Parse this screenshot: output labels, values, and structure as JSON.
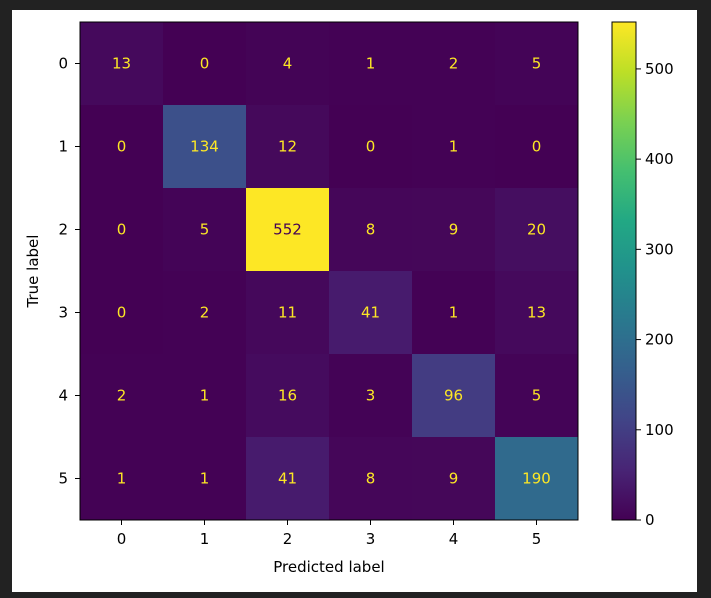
{
  "chart_data": {
    "type": "heatmap",
    "title": "",
    "xlabel": "Predicted label",
    "ylabel": "True label",
    "x_categories": [
      "0",
      "1",
      "2",
      "3",
      "4",
      "5"
    ],
    "y_categories": [
      "0",
      "1",
      "2",
      "3",
      "4",
      "5"
    ],
    "values": [
      [
        13,
        0,
        4,
        1,
        2,
        5
      ],
      [
        0,
        134,
        12,
        0,
        1,
        0
      ],
      [
        0,
        5,
        552,
        8,
        9,
        20
      ],
      [
        0,
        2,
        11,
        41,
        1,
        13
      ],
      [
        2,
        1,
        16,
        3,
        96,
        5
      ],
      [
        1,
        1,
        41,
        8,
        9,
        190
      ]
    ],
    "colormap": "viridis",
    "low_text_color": "#fde725",
    "high_text_color": "#440154",
    "colorbar": {
      "range": [
        0,
        552
      ],
      "ticks": [
        0,
        100,
        200,
        300,
        400,
        500
      ],
      "tick_labels": [
        "0",
        "100",
        "200",
        "300",
        "400",
        "500"
      ]
    },
    "grid": false,
    "legend": "colorbar-right"
  }
}
